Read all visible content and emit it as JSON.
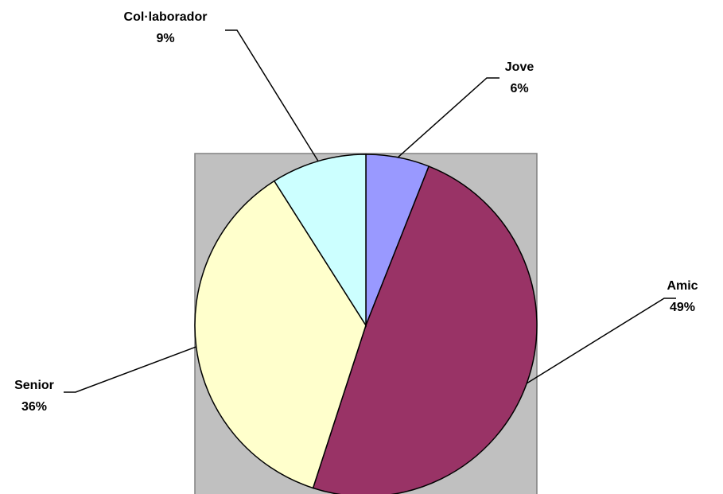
{
  "chart_data": {
    "type": "pie",
    "categories": [
      "Jove",
      "Amic",
      "Senior",
      "Col·laborador"
    ],
    "values": [
      6,
      49,
      36,
      9
    ],
    "value_labels": [
      "6%",
      "49%",
      "36%",
      "9%"
    ],
    "colors": [
      "#9999ff",
      "#993366",
      "#ffffcc",
      "#ccffff"
    ]
  }
}
